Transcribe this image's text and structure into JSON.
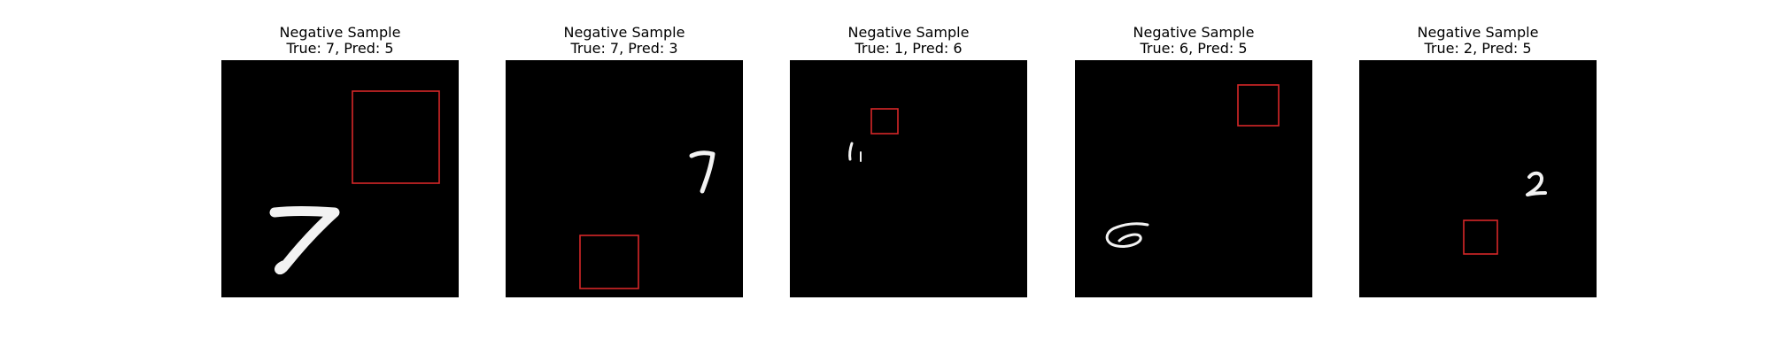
{
  "figure": {
    "panels": [
      {
        "heading": "Negative Sample",
        "caption": "True: 7, Pred: 5",
        "true_label": 7,
        "pred_label": 5,
        "digit_glyph": "7",
        "box_color": "#d62728"
      },
      {
        "heading": "Negative Sample",
        "caption": "True: 7, Pred: 3",
        "true_label": 7,
        "pred_label": 3,
        "digit_glyph": "7",
        "box_color": "#d62728"
      },
      {
        "heading": "Negative Sample",
        "caption": "True: 1, Pred: 6",
        "true_label": 1,
        "pred_label": 6,
        "digit_glyph": "1",
        "box_color": "#d62728"
      },
      {
        "heading": "Negative Sample",
        "caption": "True: 6, Pred: 5",
        "true_label": 6,
        "pred_label": 5,
        "digit_glyph": "6",
        "box_color": "#d62728"
      },
      {
        "heading": "Negative Sample",
        "caption": "True: 2, Pred: 5",
        "true_label": 2,
        "pred_label": 5,
        "digit_glyph": "2",
        "box_color": "#d62728"
      }
    ]
  }
}
